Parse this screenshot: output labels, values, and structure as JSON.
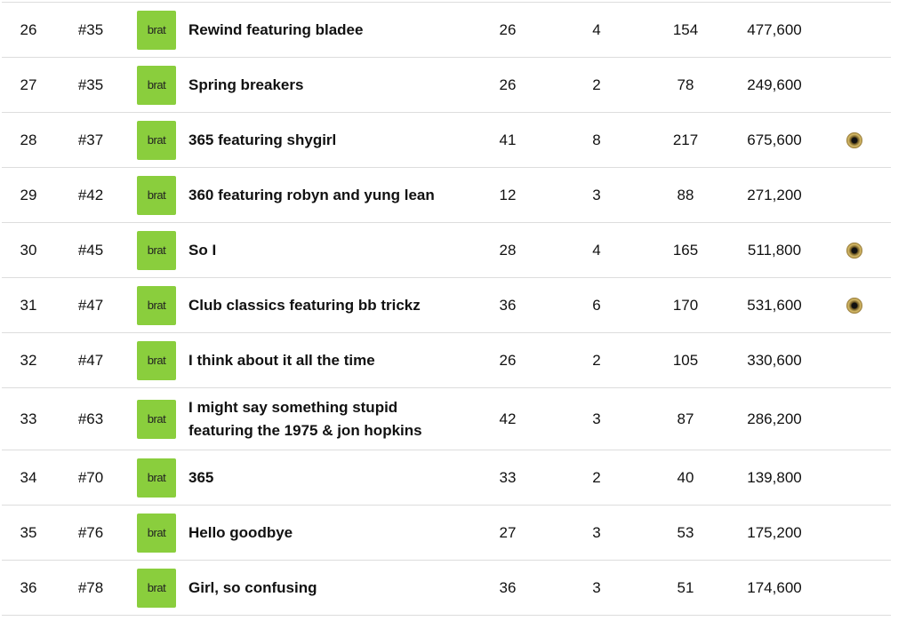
{
  "table": {
    "rows": [
      {
        "cells": [
          26,
          "#35",
          "brat",
          "Rewind featuring bladee",
          26,
          4,
          154,
          "477,600"
        ],
        "disc": false
      },
      {
        "cells": [
          27,
          "#35",
          "brat",
          "Spring breakers",
          26,
          2,
          78,
          "249,600"
        ],
        "disc": false
      },
      {
        "cells": [
          28,
          "#37",
          "brat",
          "365 featuring shygirl",
          41,
          8,
          217,
          "675,600"
        ],
        "disc": true
      },
      {
        "cells": [
          29,
          "#42",
          "brat",
          "360 featuring robyn and yung lean",
          12,
          3,
          88,
          "271,200"
        ],
        "disc": false
      },
      {
        "cells": [
          30,
          "#45",
          "brat",
          "So I",
          28,
          4,
          165,
          "511,800"
        ],
        "disc": true
      },
      {
        "cells": [
          31,
          "#47",
          "brat",
          "Club classics featuring bb trickz",
          36,
          6,
          170,
          "531,600"
        ],
        "disc": true
      },
      {
        "cells": [
          32,
          "#47",
          "brat",
          "I think about it all the time",
          26,
          2,
          105,
          "330,600"
        ],
        "disc": false
      },
      {
        "cells": [
          33,
          "#63",
          "brat",
          "I might say something stupid featuring the 1975 & jon hopkins",
          42,
          3,
          87,
          "286,200"
        ],
        "disc": false
      },
      {
        "cells": [
          34,
          "#70",
          "brat",
          "365",
          33,
          2,
          40,
          "139,800"
        ],
        "disc": false
      },
      {
        "cells": [
          35,
          "#76",
          "brat",
          "Hello goodbye",
          27,
          3,
          53,
          "175,200"
        ],
        "disc": false
      },
      {
        "cells": [
          36,
          "#78",
          "brat",
          "Girl, so confusing",
          36,
          3,
          51,
          "174,600"
        ],
        "disc": false
      }
    ]
  }
}
